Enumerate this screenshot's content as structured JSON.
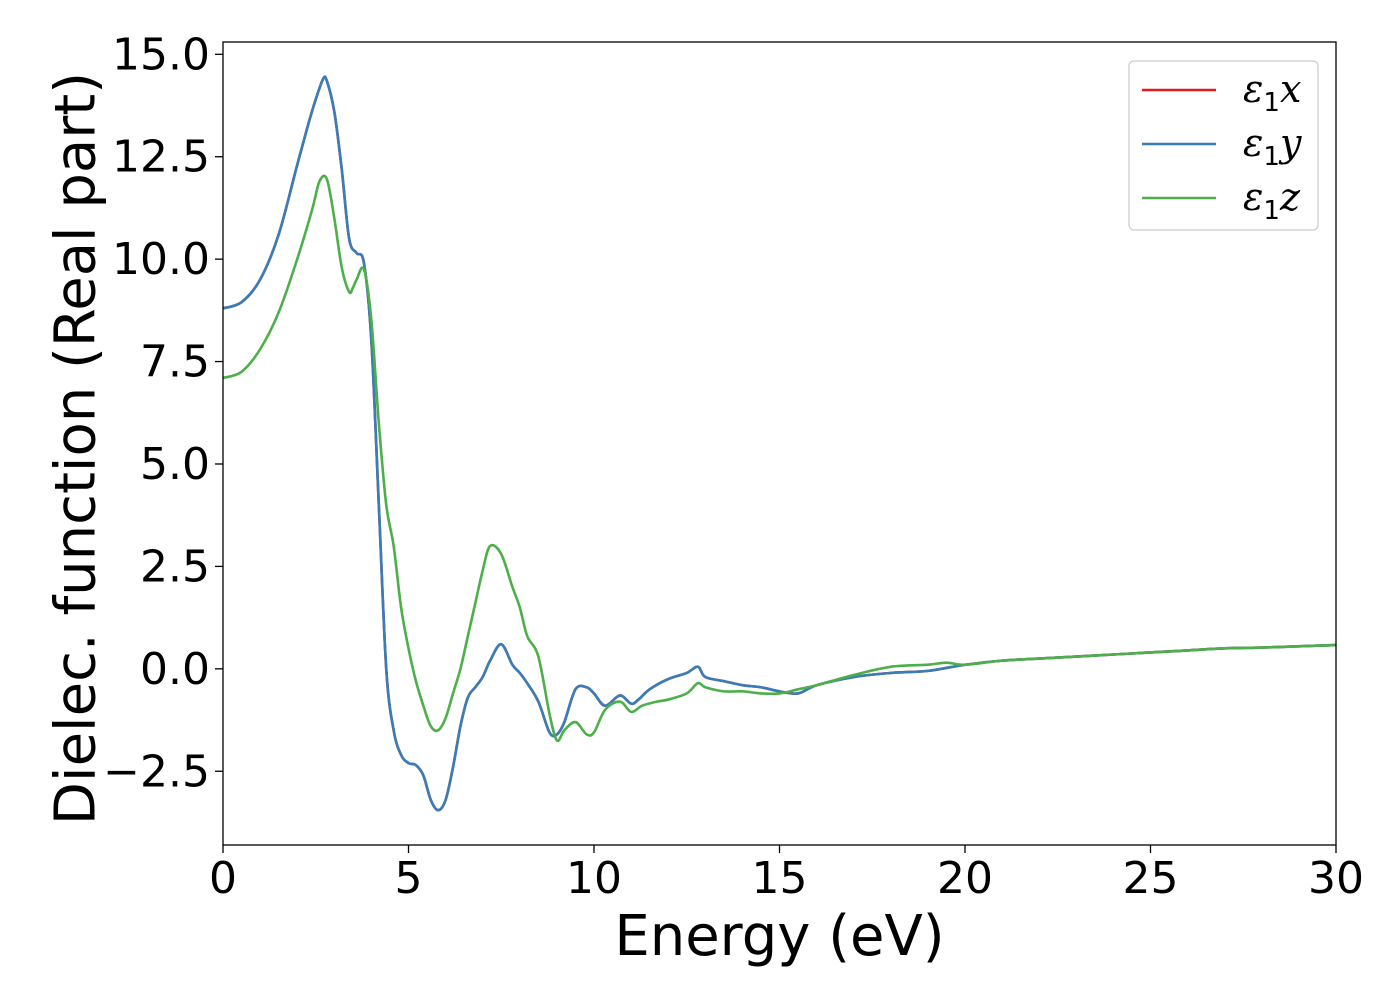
{
  "chart_data": {
    "type": "line",
    "xlabel": "Energy (eV)",
    "ylabel": "Dielec. function (Real part)",
    "xlim": [
      0,
      30
    ],
    "ylim": [
      -4.3,
      15.3
    ],
    "xticks": [
      0,
      5,
      10,
      15,
      20,
      25,
      30
    ],
    "xtick_labels": [
      "0",
      "5",
      "10",
      "15",
      "20",
      "25",
      "30"
    ],
    "yticks": [
      -2.5,
      0.0,
      2.5,
      5.0,
      7.5,
      10.0,
      12.5,
      15.0
    ],
    "ytick_labels": [
      "−2.5",
      "0.0",
      "2.5",
      "5.0",
      "7.5",
      "10.0",
      "12.5",
      "15.0"
    ],
    "grid": false,
    "legend_position": "top-right",
    "series": [
      {
        "name": "ε₁x",
        "name_base": "ε",
        "name_sub": "1",
        "name_suffix": "x",
        "color": "#e41a1c",
        "x": [
          0,
          0.5,
          1.0,
          1.5,
          2.0,
          2.3,
          2.5,
          2.7,
          2.8,
          3.0,
          3.2,
          3.4,
          3.6,
          3.8,
          4.0,
          4.2,
          4.4,
          4.6,
          4.8,
          5.0,
          5.2,
          5.4,
          5.6,
          5.8,
          6.0,
          6.2,
          6.4,
          6.6,
          6.8,
          7.0,
          7.2,
          7.5,
          7.8,
          8.0,
          8.2,
          8.5,
          8.8,
          9.0,
          9.2,
          9.5,
          9.8,
          10.0,
          10.3,
          10.7,
          11.0,
          11.2,
          11.5,
          12.0,
          12.5,
          12.8,
          13.0,
          13.5,
          14.0,
          14.5,
          15.0,
          15.5,
          16.0,
          17.0,
          18.0,
          19.0,
          20.0,
          21.0,
          22.0,
          23.0,
          24.0,
          25.0,
          26.0,
          27.0,
          28.0,
          29.0,
          30.0
        ],
        "y": [
          8.8,
          8.95,
          9.5,
          10.6,
          12.3,
          13.3,
          13.9,
          14.4,
          14.35,
          13.6,
          12.2,
          10.5,
          10.15,
          9.9,
          8.0,
          4.0,
          0.0,
          -1.5,
          -2.1,
          -2.3,
          -2.35,
          -2.6,
          -3.2,
          -3.45,
          -3.2,
          -2.4,
          -1.4,
          -0.7,
          -0.45,
          -0.2,
          0.2,
          0.6,
          0.1,
          -0.1,
          -0.35,
          -0.8,
          -1.55,
          -1.6,
          -1.3,
          -0.5,
          -0.45,
          -0.6,
          -0.9,
          -0.65,
          -0.85,
          -0.75,
          -0.5,
          -0.25,
          -0.1,
          0.05,
          -0.2,
          -0.3,
          -0.4,
          -0.45,
          -0.55,
          -0.6,
          -0.4,
          -0.2,
          -0.1,
          -0.05,
          0.1,
          0.2,
          0.25,
          0.3,
          0.35,
          0.4,
          0.45,
          0.5,
          0.52,
          0.55,
          0.58
        ]
      },
      {
        "name": "ε₁y",
        "name_base": "ε",
        "name_sub": "1",
        "name_suffix": "y",
        "color": "#377eb8",
        "x": [
          0,
          0.5,
          1.0,
          1.5,
          2.0,
          2.3,
          2.5,
          2.7,
          2.8,
          3.0,
          3.2,
          3.4,
          3.6,
          3.8,
          4.0,
          4.2,
          4.4,
          4.6,
          4.8,
          5.0,
          5.2,
          5.4,
          5.6,
          5.8,
          6.0,
          6.2,
          6.4,
          6.6,
          6.8,
          7.0,
          7.2,
          7.5,
          7.8,
          8.0,
          8.2,
          8.5,
          8.8,
          9.0,
          9.2,
          9.5,
          9.8,
          10.0,
          10.3,
          10.7,
          11.0,
          11.2,
          11.5,
          12.0,
          12.5,
          12.8,
          13.0,
          13.5,
          14.0,
          14.5,
          15.0,
          15.5,
          16.0,
          17.0,
          18.0,
          19.0,
          20.0,
          21.0,
          22.0,
          23.0,
          24.0,
          25.0,
          26.0,
          27.0,
          28.0,
          29.0,
          30.0
        ],
        "y": [
          8.8,
          8.95,
          9.5,
          10.6,
          12.3,
          13.3,
          13.9,
          14.4,
          14.35,
          13.6,
          12.2,
          10.5,
          10.15,
          9.9,
          8.0,
          4.0,
          0.0,
          -1.5,
          -2.1,
          -2.3,
          -2.35,
          -2.6,
          -3.2,
          -3.45,
          -3.2,
          -2.4,
          -1.4,
          -0.7,
          -0.45,
          -0.2,
          0.2,
          0.6,
          0.1,
          -0.1,
          -0.35,
          -0.8,
          -1.55,
          -1.6,
          -1.3,
          -0.5,
          -0.45,
          -0.6,
          -0.9,
          -0.65,
          -0.85,
          -0.75,
          -0.5,
          -0.25,
          -0.1,
          0.05,
          -0.2,
          -0.3,
          -0.4,
          -0.45,
          -0.55,
          -0.6,
          -0.4,
          -0.2,
          -0.1,
          -0.05,
          0.1,
          0.2,
          0.25,
          0.3,
          0.35,
          0.4,
          0.45,
          0.5,
          0.52,
          0.55,
          0.58
        ]
      },
      {
        "name": "ε₁z",
        "name_base": "ε",
        "name_sub": "1",
        "name_suffix": "z",
        "color": "#4daf4a",
        "x": [
          0,
          0.5,
          1.0,
          1.5,
          2.0,
          2.4,
          2.6,
          2.8,
          3.0,
          3.2,
          3.4,
          3.5,
          3.6,
          3.8,
          4.0,
          4.2,
          4.4,
          4.6,
          4.8,
          5.0,
          5.2,
          5.4,
          5.6,
          5.8,
          6.0,
          6.2,
          6.4,
          6.6,
          6.8,
          7.0,
          7.2,
          7.5,
          7.8,
          8.0,
          8.2,
          8.5,
          8.8,
          9.0,
          9.2,
          9.5,
          9.8,
          10.0,
          10.3,
          10.7,
          11.0,
          11.3,
          11.7,
          12.0,
          12.5,
          12.8,
          13.0,
          13.5,
          14.0,
          14.5,
          15.0,
          15.5,
          16.0,
          17.0,
          18.0,
          19.0,
          19.5,
          20.0,
          21.0,
          22.0,
          23.0,
          24.0,
          25.0,
          26.0,
          27.0,
          28.0,
          29.0,
          30.0
        ],
        "y": [
          7.1,
          7.25,
          7.8,
          8.7,
          10.0,
          11.2,
          11.9,
          11.95,
          11.0,
          9.8,
          9.2,
          9.3,
          9.5,
          9.75,
          8.5,
          6.0,
          4.0,
          3.0,
          1.5,
          0.5,
          -0.3,
          -0.9,
          -1.4,
          -1.5,
          -1.2,
          -0.6,
          0.0,
          0.8,
          1.6,
          2.4,
          3.0,
          2.8,
          2.0,
          1.5,
          0.8,
          0.3,
          -1.1,
          -1.75,
          -1.5,
          -1.3,
          -1.6,
          -1.55,
          -1.0,
          -0.8,
          -1.05,
          -0.9,
          -0.8,
          -0.75,
          -0.6,
          -0.35,
          -0.45,
          -0.55,
          -0.55,
          -0.6,
          -0.6,
          -0.5,
          -0.4,
          -0.15,
          0.05,
          0.1,
          0.15,
          0.1,
          0.2,
          0.25,
          0.3,
          0.35,
          0.4,
          0.45,
          0.5,
          0.52,
          0.55,
          0.58
        ]
      }
    ]
  }
}
